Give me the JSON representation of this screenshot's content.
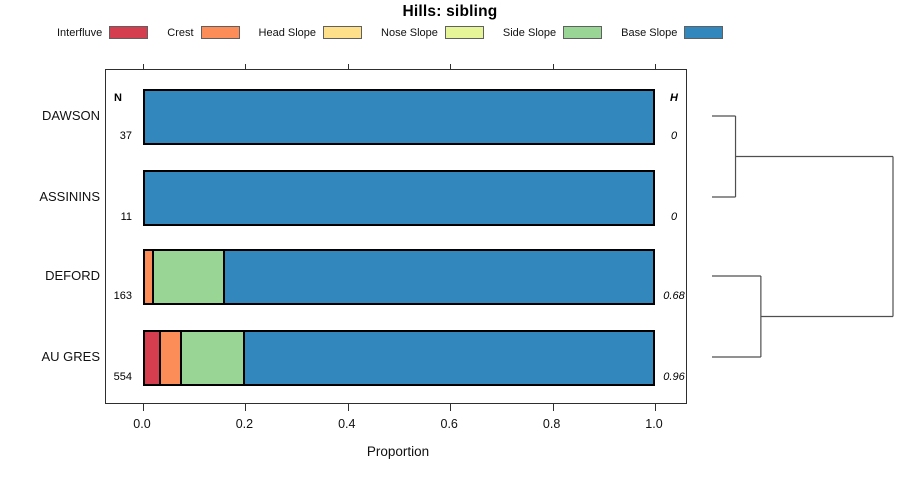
{
  "title": "Hills: sibling",
  "legend": {
    "items": [
      {
        "label": "Interfluve",
        "color": "#d53e4f"
      },
      {
        "label": "Crest",
        "color": "#fc8d59"
      },
      {
        "label": "Head Slope",
        "color": "#fee08b"
      },
      {
        "label": "Nose Slope",
        "color": "#e6f598"
      },
      {
        "label": "Side Slope",
        "color": "#99d594"
      },
      {
        "label": "Base Slope",
        "color": "#3288bd"
      }
    ]
  },
  "chart_data": {
    "type": "bar",
    "orientation": "horizontal",
    "stacked": true,
    "title": "Hills: sibling",
    "xlabel": "Proportion",
    "xlim": [
      0,
      1
    ],
    "xticks": [
      0.0,
      0.2,
      0.4,
      0.6,
      0.8,
      1.0
    ],
    "xtick_labels": [
      "0.0",
      "0.2",
      "0.4",
      "0.6",
      "0.8",
      "1.0"
    ],
    "grid": false,
    "legend_position": "top",
    "column_headers": {
      "n": "N",
      "h": "H"
    },
    "classes": [
      "Interfluve",
      "Crest",
      "Head Slope",
      "Nose Slope",
      "Side Slope",
      "Base Slope"
    ],
    "colors": [
      "#d53e4f",
      "#fc8d59",
      "#fee08b",
      "#e6f598",
      "#99d594",
      "#3288bd"
    ],
    "rows": [
      {
        "label": "DAWSON",
        "n": "37",
        "h": "0",
        "values": [
          0,
          0,
          0,
          0,
          0,
          1.0
        ]
      },
      {
        "label": "ASSININS",
        "n": "11",
        "h": "0",
        "values": [
          0,
          0,
          0,
          0,
          0,
          1.0
        ]
      },
      {
        "label": "DEFORD",
        "n": "163",
        "h": "0.68",
        "values": [
          0,
          0.014,
          0,
          0,
          0.14,
          0.846
        ]
      },
      {
        "label": "AU GRES",
        "n": "554",
        "h": "0.96",
        "values": [
          0.027,
          0.042,
          0,
          0,
          0.124,
          0.807
        ]
      }
    ]
  },
  "dendrogram": {
    "leaf_order": [
      "DAWSON",
      "ASSININS",
      "DEFORD",
      "AU GRES"
    ],
    "merges": [
      {
        "id": "m0",
        "a": "DAWSON",
        "b": "ASSININS",
        "height": 0.13
      },
      {
        "id": "m1",
        "a": "DEFORD",
        "b": "AU GRES",
        "height": 0.27
      },
      {
        "id": "m2",
        "a": "m0",
        "b": "m1",
        "height": 1.0
      }
    ]
  }
}
